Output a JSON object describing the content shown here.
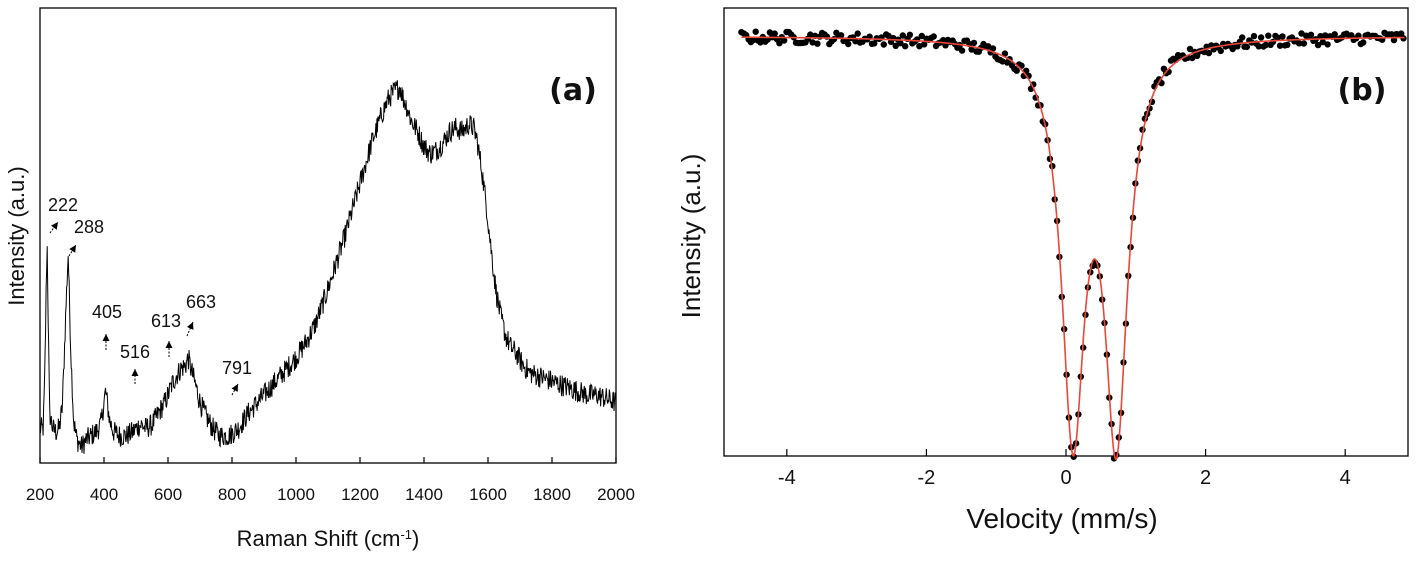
{
  "chart_data": [
    {
      "panel_label": "(a)",
      "type": "line",
      "xlabel": "Raman Shift (cm",
      "xlabel_sup": "-1",
      "xlabel_close": ")",
      "ylabel": "Intensity (a.u.)",
      "xlim": [
        200,
        2000
      ],
      "ylim": [
        0,
        1
      ],
      "y_ticks_shown": false,
      "x_ticks": [
        200,
        400,
        600,
        800,
        1000,
        1200,
        1400,
        1600,
        1800,
        2000
      ],
      "x_tick_labels": [
        "200",
        "400",
        "600",
        "800",
        "1000",
        "1200",
        "1400",
        "1600",
        "1800",
        "2000"
      ],
      "line_color": "#000000",
      "series": [
        {
          "x": [
            200,
            210,
            215,
            222,
            230,
            240,
            250,
            260,
            270,
            280,
            288,
            296,
            305,
            315,
            330,
            345,
            360,
            375,
            390,
            405,
            418,
            430,
            450,
            470,
            490,
            500,
            516,
            530,
            550,
            570,
            590,
            605,
            613,
            625,
            640,
            655,
            663,
            672,
            685,
            700,
            720,
            740,
            760,
            780,
            791,
            805,
            820,
            850,
            880,
            910,
            940,
            970,
            1000,
            1030,
            1060,
            1090,
            1120,
            1150,
            1180,
            1210,
            1240,
            1270,
            1290,
            1310,
            1325,
            1335,
            1345,
            1360,
            1380,
            1400,
            1420,
            1440,
            1460,
            1480,
            1500,
            1520,
            1540,
            1555,
            1565,
            1580,
            1595,
            1610,
            1625,
            1640,
            1655,
            1670,
            1690,
            1710,
            1730,
            1760,
            1790,
            1820,
            1850,
            1880,
            1910,
            1940,
            1970,
            2000
          ],
          "y": [
            0.08,
            0.08,
            0.22,
            0.59,
            0.12,
            0.08,
            0.07,
            0.08,
            0.14,
            0.38,
            0.55,
            0.3,
            0.1,
            0.05,
            0.03,
            0.05,
            0.06,
            0.07,
            0.09,
            0.18,
            0.1,
            0.07,
            0.06,
            0.06,
            0.07,
            0.08,
            0.09,
            0.08,
            0.09,
            0.12,
            0.15,
            0.18,
            0.2,
            0.22,
            0.24,
            0.25,
            0.27,
            0.24,
            0.2,
            0.15,
            0.11,
            0.08,
            0.06,
            0.06,
            0.06,
            0.07,
            0.08,
            0.12,
            0.15,
            0.18,
            0.21,
            0.24,
            0.27,
            0.31,
            0.36,
            0.43,
            0.51,
            0.59,
            0.68,
            0.77,
            0.86,
            0.93,
            0.97,
            0.99,
            1.0,
            0.97,
            0.95,
            0.91,
            0.88,
            0.84,
            0.82,
            0.83,
            0.85,
            0.88,
            0.89,
            0.88,
            0.9,
            0.89,
            0.86,
            0.78,
            0.68,
            0.56,
            0.45,
            0.38,
            0.33,
            0.3,
            0.28,
            0.25,
            0.23,
            0.22,
            0.21,
            0.2,
            0.19,
            0.18,
            0.17,
            0.17,
            0.16,
            0.15
          ]
        }
      ],
      "annotations": [
        {
          "text": "222",
          "x": 222
        },
        {
          "text": "288",
          "x": 288
        },
        {
          "text": "405",
          "x": 405
        },
        {
          "text": "516",
          "x": 516
        },
        {
          "text": "613",
          "x": 613
        },
        {
          "text": "663",
          "x": 663
        },
        {
          "text": "791",
          "x": 791
        }
      ]
    },
    {
      "panel_label": "(b)",
      "type": "scatter",
      "xlabel": "Velocity (mm/s)",
      "ylabel": "Intensity (a.u.)",
      "xlim": [
        -4.9,
        4.9
      ],
      "ylim": [
        0,
        1
      ],
      "y_ticks_shown": false,
      "x_ticks": [
        -4,
        -2,
        0,
        2,
        4
      ],
      "x_tick_labels": [
        "-4",
        "-2",
        "0",
        "2",
        "4"
      ],
      "fit": {
        "type": "doublet",
        "centers_mm_s": [
          0.1,
          0.72
        ],
        "depths": [
          0.95,
          0.96
        ],
        "width_mm_s": 0.25,
        "color": "#e8473a"
      },
      "points_color": "#000000",
      "points_x_range": [
        -4.65,
        4.85
      ]
    }
  ]
}
